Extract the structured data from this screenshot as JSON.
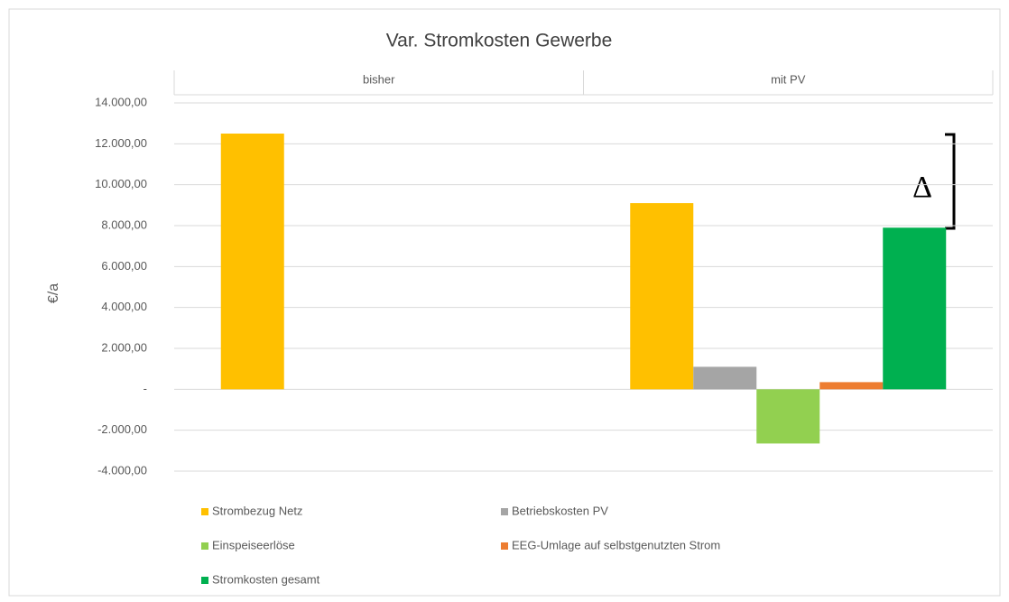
{
  "chart_data": {
    "type": "bar",
    "title": "Var. Stromkosten Gewerbe",
    "y_label": "€/a",
    "annotation": "Δ",
    "categories": [
      "bisher",
      "mit PV"
    ],
    "series": [
      {
        "name": "Strombezug Netz",
        "color": "#ffc000",
        "values": [
          12500,
          9100
        ]
      },
      {
        "name": "Betriebskosten PV",
        "color": "#a5a5a5",
        "values": [
          null,
          1100
        ]
      },
      {
        "name": "Einspeiseerlöse",
        "color": "#92d050",
        "values": [
          null,
          -2650
        ]
      },
      {
        "name": "EEG-Umlage auf selbstgenutzten Strom",
        "color": "#ed7d31",
        "values": [
          null,
          350
        ]
      },
      {
        "name": "Stromkosten gesamt",
        "color": "#00b050",
        "values": [
          null,
          7900
        ]
      }
    ],
    "ylim": [
      -4000,
      14000
    ],
    "yticks": [
      {
        "value": -4000,
        "label": "-4.000,00"
      },
      {
        "value": -2000,
        "label": "-2.000,00"
      },
      {
        "value": 0,
        "label": "-"
      },
      {
        "value": 2000,
        "label": "2.000,00"
      },
      {
        "value": 4000,
        "label": "4.000,00"
      },
      {
        "value": 6000,
        "label": "6.000,00"
      },
      {
        "value": 8000,
        "label": "8.000,00"
      },
      {
        "value": 10000,
        "label": "10.000,00"
      },
      {
        "value": 12000,
        "label": "12.000,00"
      },
      {
        "value": 14000,
        "label": "14.000,00"
      }
    ],
    "grid": true,
    "legend": "bottom"
  }
}
